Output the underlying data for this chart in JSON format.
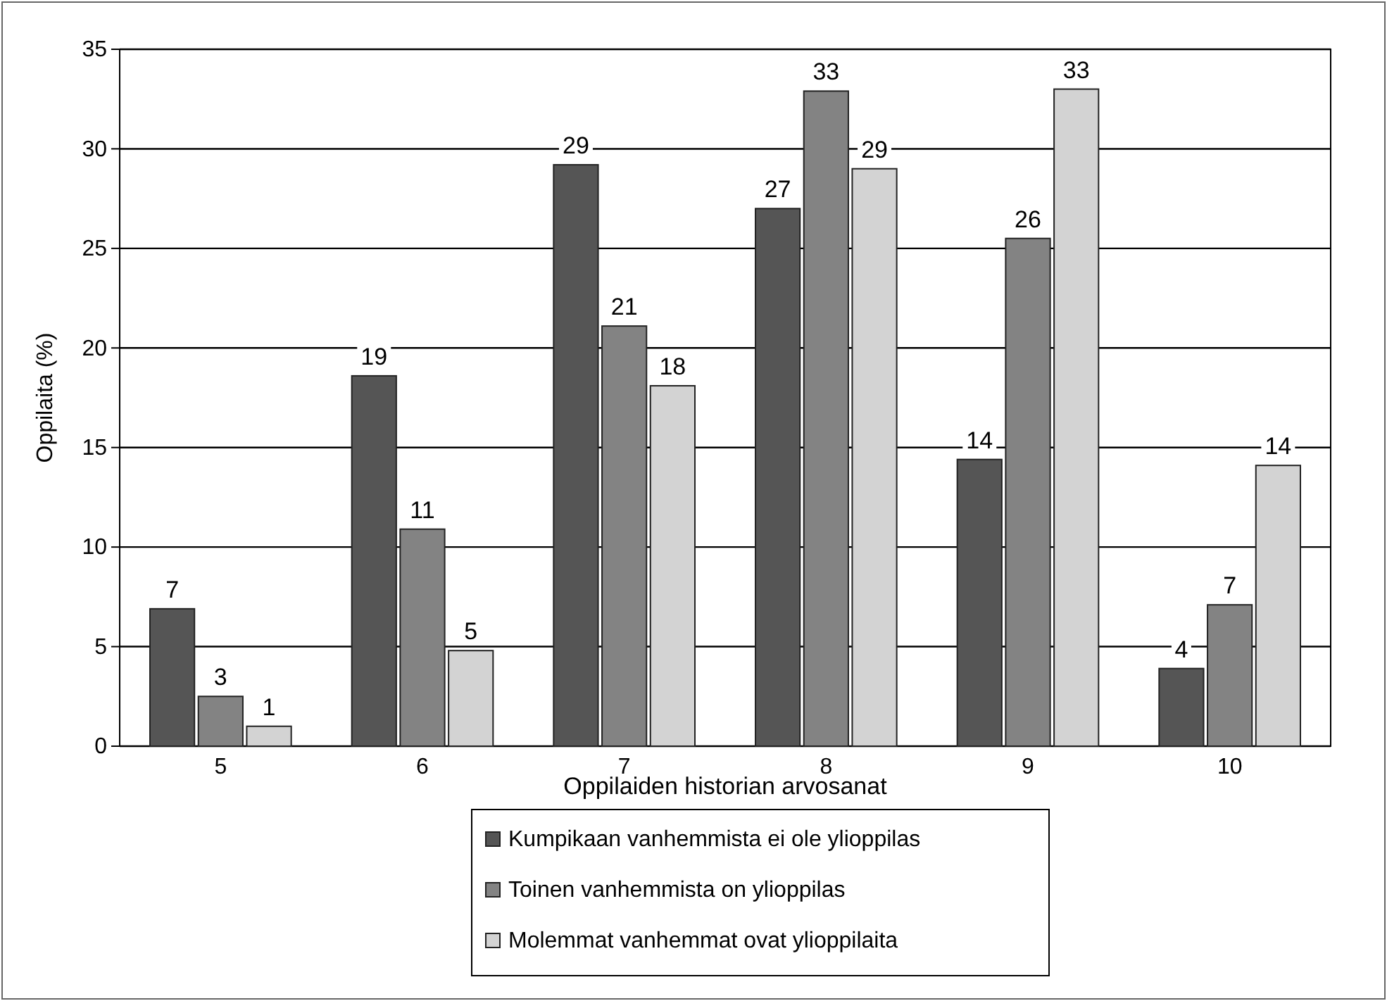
{
  "chart_data": {
    "type": "bar",
    "xlabel": "Oppilaiden historian arvosanat",
    "ylabel": "Oppilaita (%)",
    "categories": [
      "5",
      "6",
      "7",
      "8",
      "9",
      "10"
    ],
    "series": [
      {
        "name": "Kumpikaan vanhemmista ei ole ylioppilas",
        "color": "#555555",
        "values": [
          6.9,
          18.6,
          29.2,
          27,
          14.4,
          3.9
        ],
        "value_labels": [
          "7",
          "19",
          "29",
          "27",
          "14",
          "4"
        ]
      },
      {
        "name": "Toinen vanhemmista on ylioppilas",
        "color": "#838383",
        "values": [
          2.5,
          10.9,
          21.1,
          32.9,
          25.5,
          7.1
        ],
        "value_labels": [
          "3",
          "11",
          "21",
          "33",
          "26",
          "7"
        ]
      },
      {
        "name": "Molemmat vanhemmat ovat ylioppilaita",
        "color": "#d3d3d3",
        "values": [
          1,
          4.8,
          18.1,
          29,
          33,
          14.1
        ],
        "value_labels": [
          "1",
          "5",
          "18",
          "29",
          "33",
          "14"
        ]
      }
    ],
    "ylim": [
      0,
      35
    ],
    "yticks": [
      0,
      5,
      10,
      15,
      20,
      25,
      30,
      35
    ],
    "grid": "y",
    "legend": "bottom"
  }
}
